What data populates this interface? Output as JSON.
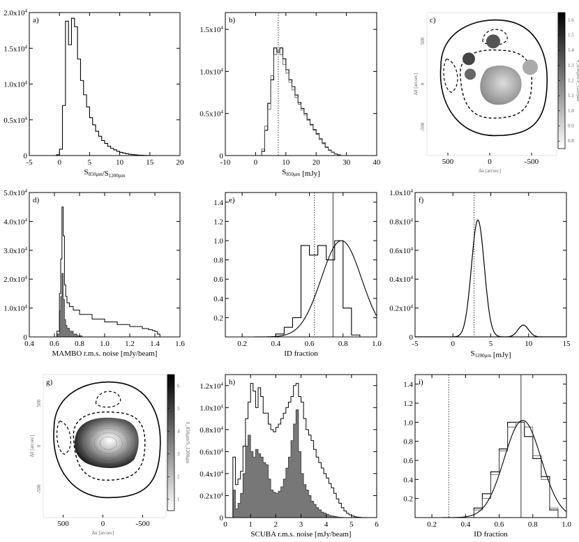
{
  "chart_data": [
    {
      "id": "a",
      "type": "step_histogram",
      "label": "a)",
      "xlabel": "S_850µm/S_1200µm",
      "xlim": [
        -5,
        20
      ],
      "ylim": [
        0,
        20000
      ],
      "xticks": [
        "-5",
        "0",
        "5",
        "10",
        "15",
        "20"
      ],
      "yticks": [
        {
          "v": 0,
          "t": "0"
        },
        {
          "v": 5000,
          "t": "0.5x10⁴"
        },
        {
          "v": 10000,
          "t": "1.0x10⁴"
        },
        {
          "v": 15000,
          "t": "1.5x10⁴"
        },
        {
          "v": 20000,
          "t": "2.0x10⁴"
        }
      ],
      "series": [
        {
          "name": "all",
          "bin_start": -0.5,
          "bin_width": 0.5,
          "values": [
            100,
            900,
            7000,
            18800,
            15500,
            19200,
            18000,
            13500,
            10500,
            8500,
            6800,
            5300,
            4300,
            3400,
            2700,
            2100,
            1700,
            1300,
            1000,
            800,
            600,
            450,
            350,
            250,
            180,
            130,
            90,
            60,
            40,
            20,
            10
          ]
        }
      ]
    },
    {
      "id": "b",
      "type": "step_histogram",
      "label": "b)",
      "xlabel": "S_850µm [mJy]",
      "xlim": [
        -10,
        40
      ],
      "ylim": [
        0,
        17000
      ],
      "vline_dotted": 7.5,
      "xticks": [
        "-10",
        "0",
        "10",
        "20",
        "30",
        "40"
      ],
      "yticks": [
        {
          "v": 0,
          "t": "0"
        },
        {
          "v": 5000,
          "t": "0.5x10⁴"
        },
        {
          "v": 10000,
          "t": "1.0x10⁴"
        },
        {
          "v": 15000,
          "t": "1.5x10⁴"
        }
      ],
      "series": [
        {
          "name": "all",
          "bin_start": 1,
          "bin_width": 1,
          "values": [
            0,
            500,
            3000,
            6200,
            9000,
            12800,
            12300,
            12800,
            11500,
            10200,
            9000,
            8200,
            7200,
            6300,
            5600,
            5000,
            4300,
            3700,
            3100,
            2600,
            2000,
            1500,
            1000,
            650,
            400,
            200,
            100
          ]
        },
        {
          "name": "subset",
          "bin_start": 1,
          "bin_width": 1,
          "values": [
            0,
            800,
            3500,
            5500,
            9500,
            12000,
            12500,
            12000,
            10800,
            9800,
            8700,
            7800,
            6900,
            6100,
            5400,
            4800,
            4200,
            3600,
            3000,
            2500,
            1900,
            1400,
            950,
            600,
            380,
            180,
            80
          ]
        }
      ]
    },
    {
      "id": "c",
      "type": "map",
      "label": "c)",
      "xlabel": "Δα [arcsec]",
      "ylabel": "Δδ [arcsec]",
      "colorbar_label": "S_850µm/S_1200µm",
      "xticks": [
        "500",
        "0",
        "-500"
      ],
      "yticks": [
        "500",
        "0",
        "-500"
      ],
      "colorbar_ticks": [
        "0.8",
        "0.9",
        "1.0",
        "1.1",
        "1.2",
        "1.3",
        "1.4",
        "1.5",
        "1.6"
      ]
    },
    {
      "id": "d",
      "type": "step_histogram",
      "label": "d)",
      "xlabel": "MAMBO r.m.s. noise [mJy/beam]",
      "xlim": [
        0.4,
        1.6
      ],
      "ylim": [
        0,
        50000
      ],
      "xticks": [
        "0.4",
        "0.6",
        "0.8",
        "1.0",
        "1.2",
        "1.4",
        "1.6"
      ],
      "yticks": [
        {
          "v": 0,
          "t": "0"
        },
        {
          "v": 10000,
          "t": "1.0x10⁴"
        },
        {
          "v": 20000,
          "t": "2.0x10⁴"
        },
        {
          "v": 30000,
          "t": "3.0x10⁴"
        },
        {
          "v": 40000,
          "t": "4.0x10⁴"
        },
        {
          "v": 50000,
          "t": "5.0x10⁴"
        }
      ],
      "series": [
        {
          "name": "all",
          "x": [
            0.62,
            0.64,
            0.65,
            0.66,
            0.67,
            0.68,
            0.69,
            0.7,
            0.72,
            0.75,
            0.8,
            0.9,
            1.0,
            1.1,
            1.2,
            1.3,
            1.35,
            1.38,
            1.4,
            1.42,
            1.44
          ],
          "values": [
            2000,
            15000,
            27000,
            45000,
            35000,
            18000,
            14000,
            11800,
            10500,
            9300,
            7800,
            6200,
            5200,
            4300,
            3600,
            2900,
            2500,
            2200,
            1900,
            1000,
            0
          ]
        },
        {
          "name": "shaded",
          "x": [
            0.62,
            0.64,
            0.65,
            0.66,
            0.67,
            0.68,
            0.69,
            0.7,
            0.72,
            0.75,
            0.78,
            0.82
          ],
          "values": [
            1000,
            9000,
            14000,
            22000,
            13000,
            6000,
            4000,
            3000,
            2000,
            1000,
            400,
            0
          ]
        }
      ]
    },
    {
      "id": "e",
      "type": "step_histogram_fit",
      "label": "e)",
      "xlabel": "ID fraction",
      "xlim": [
        0.1,
        1.0
      ],
      "ylim": [
        0,
        1.5
      ],
      "xticks": [
        "0.2",
        "0.4",
        "0.6",
        "0.8",
        "1.0"
      ],
      "yticks": [
        {
          "v": 0.2,
          "t": "0.2"
        },
        {
          "v": 0.4,
          "t": "0.4"
        },
        {
          "v": 0.6,
          "t": "0.6"
        },
        {
          "v": 0.8,
          "t": "0.8"
        },
        {
          "v": 1.0,
          "t": "1.0"
        },
        {
          "v": 1.2,
          "t": "1.2"
        },
        {
          "v": 1.4,
          "t": "1.4"
        }
      ],
      "vline_dotted": 0.63,
      "vline_solid": 0.74,
      "series": [
        {
          "name": "histogram",
          "bin_start": 0.4,
          "bin_width": 0.05,
          "values": [
            0.03,
            0.1,
            0.2,
            0.95,
            0.85,
            0.95,
            0.8,
            1.0,
            0.3,
            0.02
          ]
        }
      ],
      "fit": {
        "mean": 0.79,
        "sigma": 0.12,
        "peak": 1.0
      }
    },
    {
      "id": "f",
      "type": "step_histogram",
      "label": "f)",
      "xlabel": "S_1200µm [mJy]",
      "xlim": [
        -5,
        15
      ],
      "ylim": [
        0,
        10000
      ],
      "vline_dotted": 2.8,
      "xticks": [
        "-5",
        "0",
        "5",
        "10",
        "15"
      ],
      "yticks": [
        {
          "v": 0,
          "t": "0"
        },
        {
          "v": 2000,
          "t": "0.2x10⁴"
        },
        {
          "v": 4000,
          "t": "0.4x10⁴"
        },
        {
          "v": 6000,
          "t": "0.6x10⁴"
        },
        {
          "v": 8000,
          "t": "0.8x10⁴"
        },
        {
          "v": 10000,
          "t": "1.0x10⁴"
        }
      ],
      "gaussians": [
        {
          "mean": 3.3,
          "sigma": 0.85,
          "peak": 8100
        },
        {
          "mean": 9.3,
          "sigma": 0.7,
          "peak": 820
        }
      ]
    },
    {
      "id": "g",
      "type": "map",
      "label": "g)",
      "xlabel": "Δα [arcsec]",
      "ylabel": "Δδ [arcsec]",
      "colorbar_label": "S_850µm/S_1200µm",
      "xticks": [
        "500",
        "0",
        "-500"
      ],
      "yticks": [
        "500",
        "0",
        "-500"
      ],
      "colorbar_ticks": [
        "1",
        "2",
        "3",
        "4",
        "5",
        "6"
      ]
    },
    {
      "id": "h",
      "type": "step_histogram",
      "label": "h)",
      "xlabel": "SCUBA r.m.s. noise [mJy/beam]",
      "xlim": [
        0,
        6
      ],
      "ylim": [
        0,
        13000
      ],
      "xticks": [
        "0",
        "1",
        "2",
        "3",
        "4",
        "5",
        "6"
      ],
      "yticks": [
        {
          "v": 0,
          "t": "0"
        },
        {
          "v": 2000,
          "t": "0.2x10⁴"
        },
        {
          "v": 4000,
          "t": "0.4x10⁴"
        },
        {
          "v": 6000,
          "t": "0.6x10⁴"
        },
        {
          "v": 8000,
          "t": "0.8x10⁴"
        },
        {
          "v": 10000,
          "t": "1.0x10⁴"
        },
        {
          "v": 12000,
          "t": "1.2x10⁴"
        }
      ],
      "series": [
        {
          "name": "all",
          "bin_start": 0.3,
          "bin_width": 0.1,
          "values": [
            5500,
            3000,
            3500,
            4200,
            6500,
            9000,
            10500,
            12200,
            11500,
            10000,
            11800,
            11000,
            9500,
            9500,
            8500,
            8000,
            7800,
            8200,
            8500,
            9000,
            9500,
            10000,
            10500,
            11000,
            12000,
            12200,
            11000,
            10500,
            9000,
            8000,
            7500,
            7000,
            6200,
            5500,
            5000,
            4500,
            4000,
            3600,
            3100,
            2700,
            2200,
            1700,
            1300,
            900,
            600,
            400,
            250,
            150,
            80,
            40,
            20,
            10,
            5,
            0
          ]
        },
        {
          "name": "shaded",
          "bin_start": 0.3,
          "bin_width": 0.1,
          "values": [
            2500,
            800,
            1300,
            2200,
            4000,
            6500,
            7500,
            6000,
            5500,
            6200,
            5800,
            5500,
            5000,
            4800,
            3500,
            2500,
            2300,
            2200,
            2400,
            2800,
            3500,
            4500,
            5500,
            7000,
            8500,
            9800,
            6000,
            4000,
            3000,
            2500,
            2000,
            1500,
            1200,
            900,
            700,
            500,
            400,
            300,
            200,
            150,
            100,
            50,
            30,
            20,
            10,
            0,
            0,
            0,
            0,
            0,
            0,
            0,
            0,
            0
          ]
        }
      ]
    },
    {
      "id": "i",
      "type": "step_histogram_fit",
      "label": "i)",
      "xlabel": "ID fraction",
      "xlim": [
        0.1,
        1.0
      ],
      "ylim": [
        0,
        1.5
      ],
      "xticks": [
        "0.2",
        "0.4",
        "0.6",
        "0.8",
        "1.0"
      ],
      "yticks": [
        {
          "v": 0.2,
          "t": "0.2"
        },
        {
          "v": 0.4,
          "t": "0.4"
        },
        {
          "v": 0.6,
          "t": "0.6"
        },
        {
          "v": 0.8,
          "t": "0.8"
        },
        {
          "v": 1.0,
          "t": "1.0"
        },
        {
          "v": 1.2,
          "t": "1.2"
        },
        {
          "v": 1.4,
          "t": "1.4"
        }
      ],
      "vline_dotted": 0.3,
      "vline_solid": 0.73,
      "series": [
        {
          "name": "histogram",
          "bin_start": 0.45,
          "bin_width": 0.05,
          "values": [
            0.1,
            0.25,
            0.48,
            0.72,
            1.0,
            1.0,
            0.85,
            0.62,
            0.43,
            0.08
          ]
        },
        {
          "name": "histogram-2",
          "bin_start": 0.45,
          "bin_width": 0.05,
          "values": [
            0.08,
            0.2,
            0.45,
            0.7,
            0.95,
            1.0,
            0.95,
            0.65,
            0.4,
            0.1
          ]
        }
      ],
      "fit": {
        "mean": 0.74,
        "sigma": 0.11,
        "peak": 1.02
      }
    }
  ]
}
